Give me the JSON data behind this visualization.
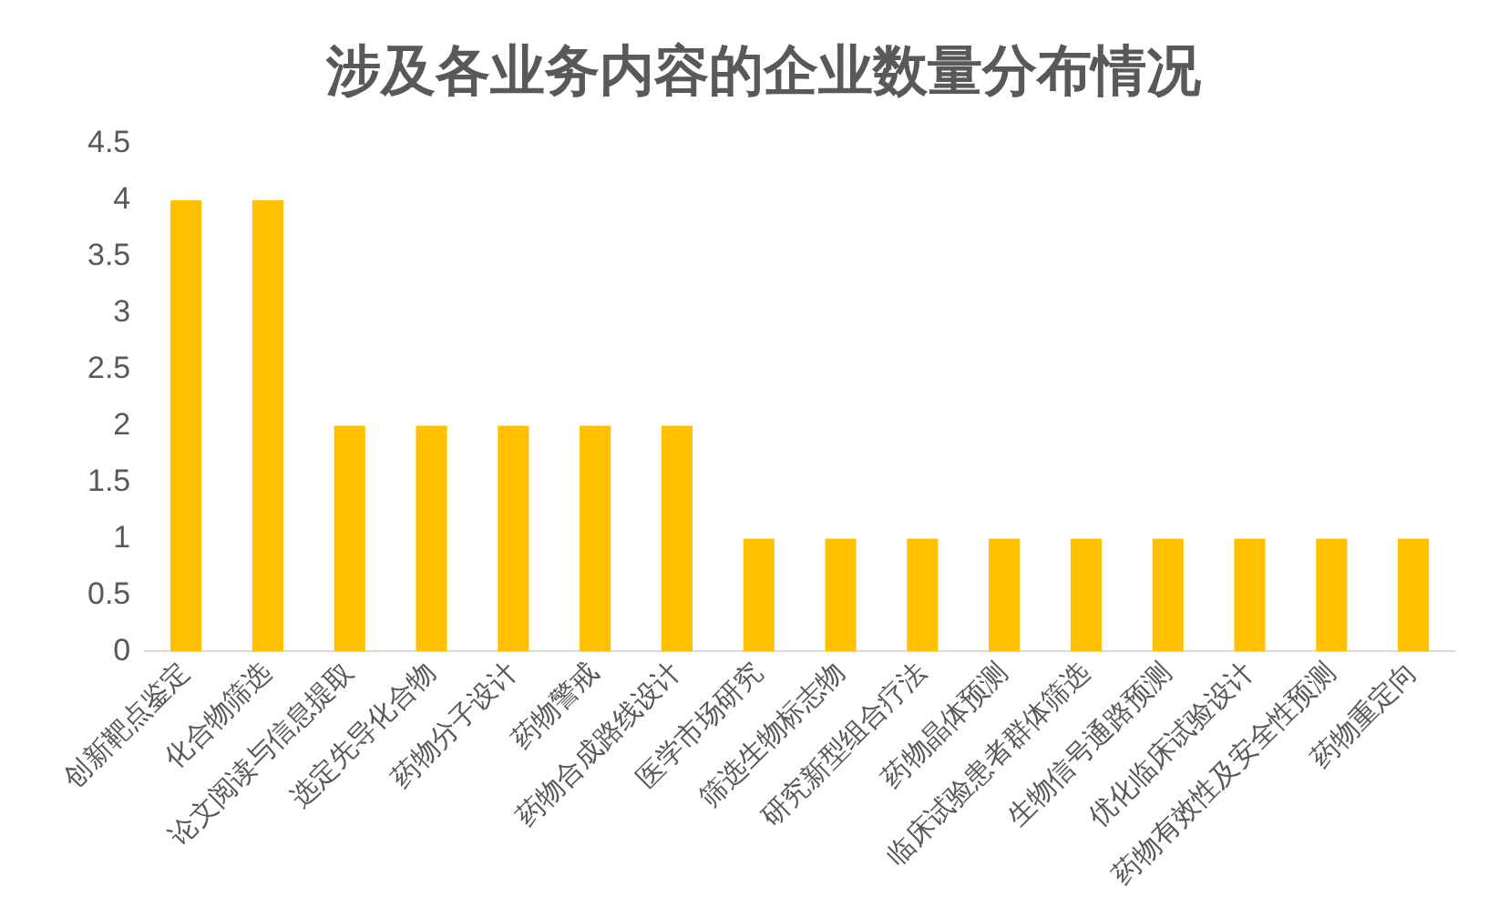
{
  "chart_data": {
    "type": "bar",
    "title": "涉及各业务内容的企业数量分布情况",
    "categories": [
      "创新靶点鉴定",
      "化合物筛选",
      "论文阅读与信息提取",
      "选定先导化合物",
      "药物分子设计",
      "药物警戒",
      "药物合成路线设计",
      "医学市场研究",
      "筛选生物标志物",
      "研究新型组合疗法",
      "药物晶体预测",
      "临床试验患者群体筛选",
      "生物信号通路预测",
      "优化临床试验设计",
      "药物有效性及安全性预测",
      "药物重定向"
    ],
    "values": [
      4,
      4,
      2,
      2,
      2,
      2,
      2,
      1,
      1,
      1,
      1,
      1,
      1,
      1,
      1,
      1
    ],
    "color": "#ffc000",
    "ylim": [
      0,
      4.5
    ],
    "yticks": [
      0,
      0.5,
      1,
      1.5,
      2,
      2.5,
      3,
      3.5,
      4,
      4.5
    ],
    "grid": false,
    "legend": false
  }
}
